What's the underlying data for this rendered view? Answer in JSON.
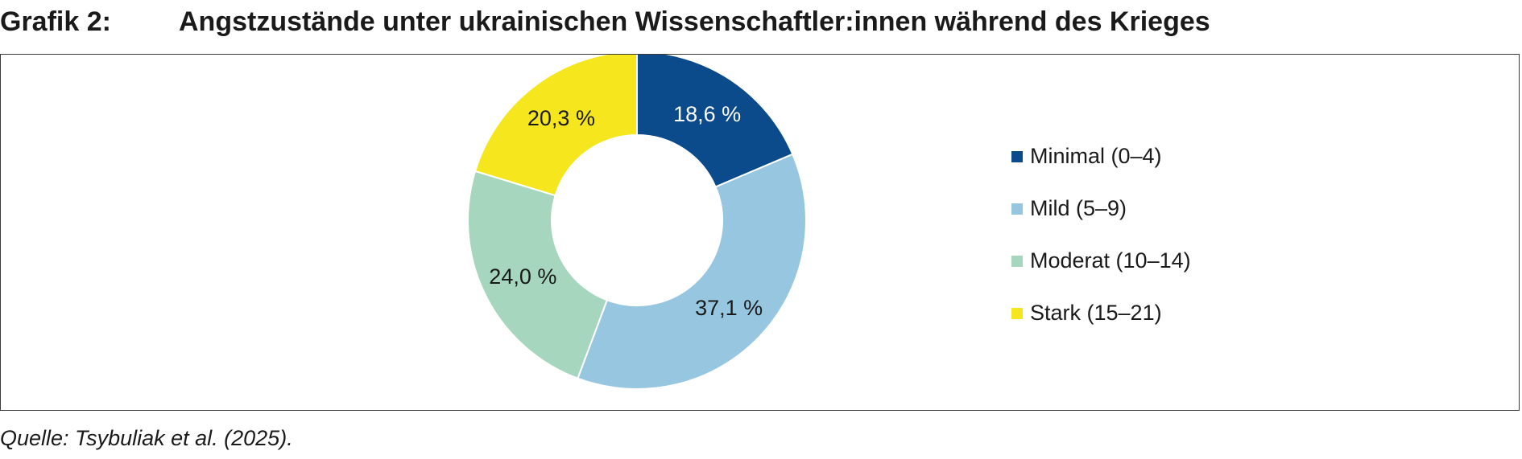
{
  "figure": {
    "label": "Grafik 2:",
    "title": "Angstzustände unter ukrainischen Wissenschaftler:innen während des Krieges"
  },
  "source": "Quelle: Tsybuliak et al. (2025).",
  "chart_data": {
    "type": "pie",
    "variant": "donut",
    "title": "Angstzustände unter ukrainischen Wissenschaftler:innen während des Krieges",
    "categories": [
      "Minimal (0–4)",
      "Mild (5–9)",
      "Moderat (10–14)",
      "Stark (15–21)"
    ],
    "values": [
      18.6,
      37.1,
      24.0,
      20.3
    ],
    "value_labels": [
      "18,6 %",
      "37,1 %",
      "24,0 %",
      "20,3 %"
    ],
    "colors": [
      "#0b4a8b",
      "#97c7e0",
      "#a6d6bd",
      "#f5e61e"
    ],
    "label_colors": [
      "#ffffff",
      "#1a1a1a",
      "#1a1a1a",
      "#1a1a1a"
    ],
    "start": "top",
    "direction": "clockwise",
    "legend_position": "right"
  }
}
